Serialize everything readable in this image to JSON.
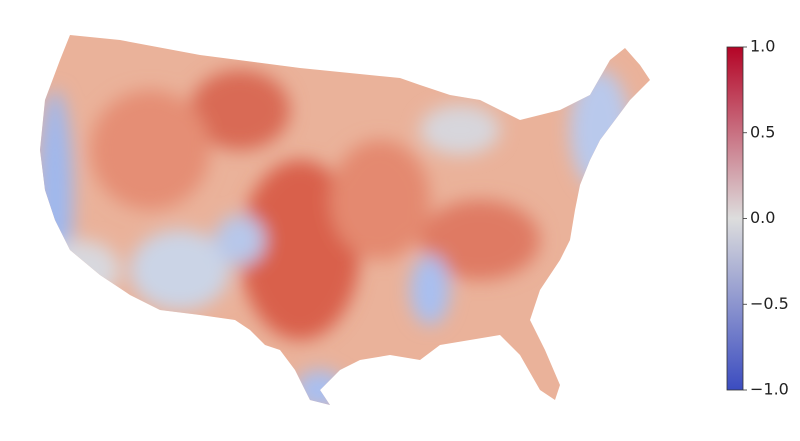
{
  "colorbar": {
    "range": [
      -1,
      1
    ],
    "ticks": [
      {
        "value": 1,
        "label": "1.0"
      },
      {
        "value": 0.5,
        "label": "0.5"
      },
      {
        "value": 0,
        "label": "0.0"
      },
      {
        "value": -0.5,
        "label": "−0.5"
      },
      {
        "value": -1,
        "label": "−1.0"
      }
    ],
    "colors": [
      "#3b4cc0",
      "#dddddd",
      "#b40426"
    ]
  }
}
